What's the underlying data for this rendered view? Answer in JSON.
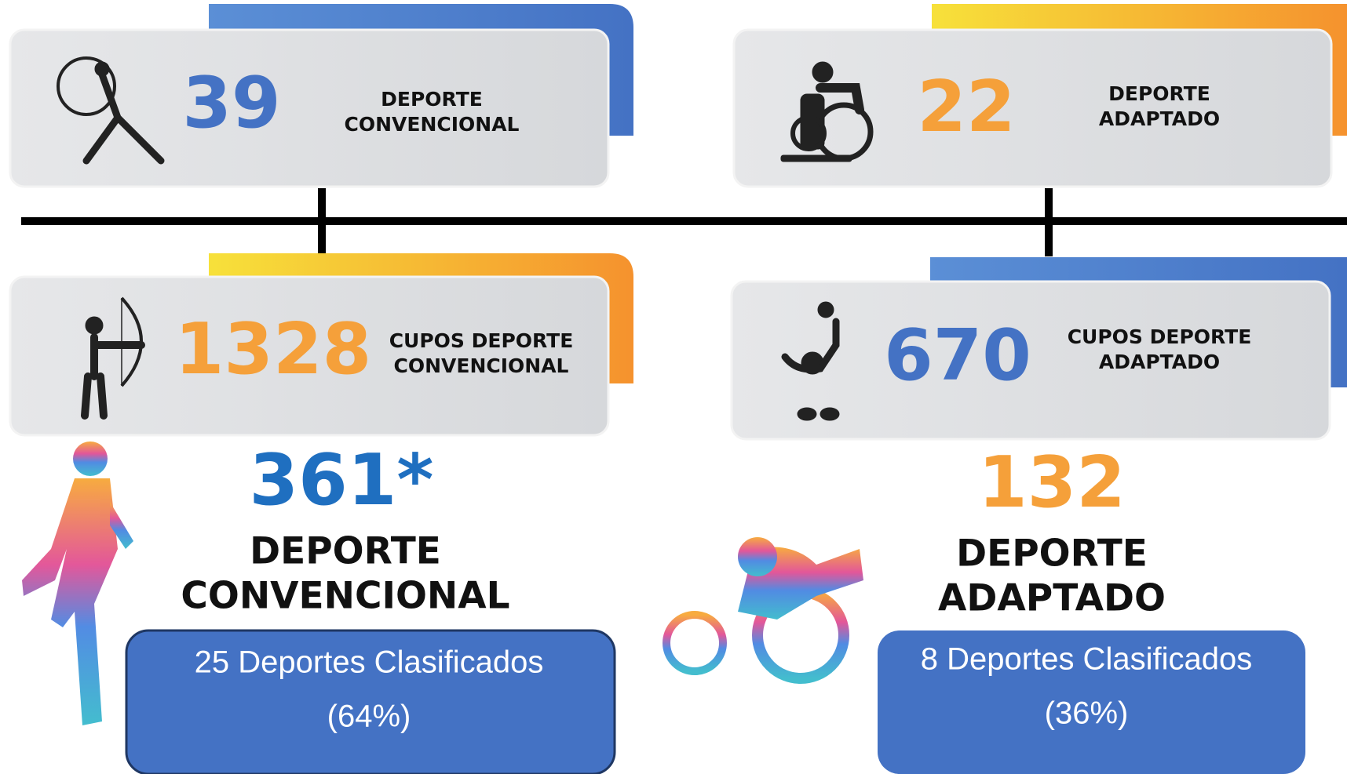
{
  "cards": [
    {
      "number": "39",
      "label": [
        "DEPORTE",
        "CONVENCIONAL"
      ]
    },
    {
      "number": "22",
      "label": [
        "DEPORTE",
        "ADAPTADO"
      ]
    },
    {
      "number": "1328",
      "label": [
        "CUPOS DEPORTE",
        "CONVENCIONAL"
      ]
    },
    {
      "number": "670",
      "label": [
        "CUPOS DEPORTE",
        "ADAPTADO"
      ]
    }
  ],
  "summary": [
    {
      "number": "361*",
      "label": [
        "DEPORTE",
        "CONVENCIONAL"
      ],
      "box": [
        "25 Deportes Clasificados",
        "(64%)"
      ]
    },
    {
      "number": "132",
      "label": [
        "DEPORTE",
        "ADAPTADO"
      ],
      "box": [
        "8 Deportes Clasificados",
        "(36%)"
      ]
    }
  ]
}
